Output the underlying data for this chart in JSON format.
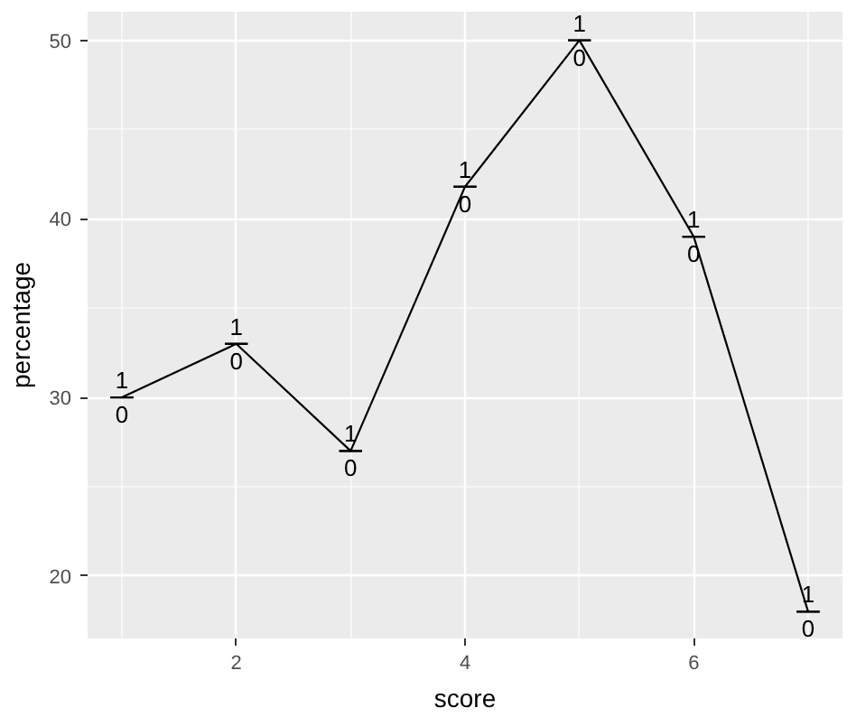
{
  "chart_data": {
    "type": "line",
    "xlabel": "score",
    "ylabel": "percentage",
    "x": [
      1,
      2,
      3,
      4,
      5,
      6,
      7
    ],
    "series": [
      {
        "color": "#000000",
        "values": [
          30,
          33,
          27,
          41.8,
          50,
          39,
          18
        ],
        "errors": [
          0,
          0,
          0,
          0,
          0,
          0,
          0
        ]
      }
    ],
    "xlim": [
      0.7,
      7.3
    ],
    "ylim": [
      16.5,
      51.6
    ],
    "xticks": [
      2,
      4,
      6
    ],
    "yticks": [
      20,
      30,
      40,
      50
    ],
    "grid": true,
    "annotations": [
      {
        "text": "1",
        "x": 1,
        "y": 30
      },
      {
        "text": "0",
        "x": 1,
        "y": 30
      },
      {
        "text": "1",
        "x": 2,
        "y": 33
      },
      {
        "text": "0",
        "x": 2,
        "y": 33
      },
      {
        "text": "1",
        "x": 3,
        "y": 27
      },
      {
        "text": "0",
        "x": 3,
        "y": 27
      },
      {
        "text": "1",
        "x": 4,
        "y": 41.8
      },
      {
        "text": "0",
        "x": 4,
        "y": 41.8
      },
      {
        "text": "1",
        "x": 5,
        "y": 50
      },
      {
        "text": "0",
        "x": 5,
        "y": 50
      },
      {
        "text": "1",
        "x": 6,
        "y": 39
      },
      {
        "text": "0",
        "x": 6,
        "y": 39
      },
      {
        "text": "1",
        "x": 7,
        "y": 18
      },
      {
        "text": "0",
        "x": 7,
        "y": 18
      }
    ]
  }
}
